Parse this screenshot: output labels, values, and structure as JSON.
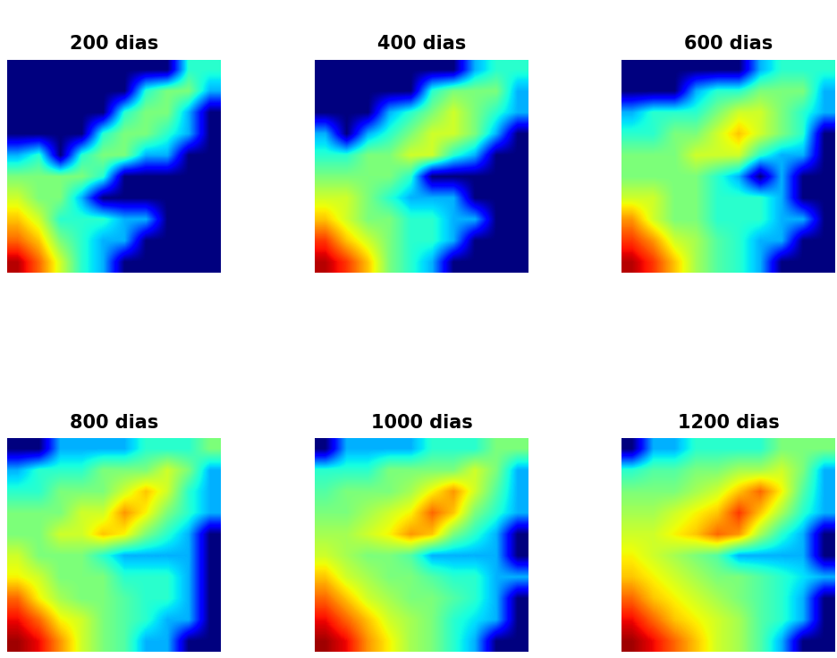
{
  "chart_data": [
    {
      "type": "heatmap",
      "title": "200 dias",
      "color": "jet",
      "color_range": [
        0,
        1
      ],
      "tick_labels": false,
      "cells": [
        [
          0,
          0,
          0,
          0,
          0,
          0,
          0,
          0,
          0.4,
          0.4
        ],
        [
          0,
          0,
          0,
          0,
          0,
          0,
          0.4,
          0.5,
          0.5,
          0.3
        ],
        [
          0,
          0,
          0,
          0,
          0,
          0.4,
          0.5,
          0.5,
          0.3,
          0
        ],
        [
          0,
          0,
          0,
          0,
          0.4,
          0.5,
          0.5,
          0.4,
          0.3,
          0
        ],
        [
          0.3,
          0.4,
          0,
          0.4,
          0.5,
          0.5,
          0.3,
          0.3,
          0,
          0
        ],
        [
          0.5,
          0.5,
          0.5,
          0.5,
          0.4,
          0,
          0,
          0,
          0,
          0
        ],
        [
          0.6,
          0.5,
          0.5,
          0.3,
          0,
          0,
          0,
          0,
          0,
          0
        ],
        [
          0.7,
          0.6,
          0.4,
          0.4,
          0.4,
          0.3,
          0.3,
          0,
          0,
          0
        ],
        [
          0.8,
          0.7,
          0.5,
          0.4,
          0.3,
          0.3,
          0,
          0,
          0,
          0
        ],
        [
          0.95,
          0.8,
          0.6,
          0.4,
          0.3,
          0,
          0,
          0,
          0,
          0
        ]
      ]
    },
    {
      "type": "heatmap",
      "title": "400 dias",
      "color": "jet",
      "color_range": [
        0,
        1
      ],
      "tick_labels": false,
      "cells": [
        [
          0,
          0,
          0,
          0,
          0,
          0,
          0,
          0.3,
          0.4,
          0.4
        ],
        [
          0,
          0,
          0,
          0,
          0,
          0.4,
          0.5,
          0.5,
          0.5,
          0.3
        ],
        [
          0,
          0,
          0,
          0.3,
          0.4,
          0.5,
          0.6,
          0.5,
          0.4,
          0.3
        ],
        [
          0.3,
          0,
          0.3,
          0.4,
          0.5,
          0.6,
          0.6,
          0.5,
          0.3,
          0
        ],
        [
          0.4,
          0.4,
          0.5,
          0.5,
          0.6,
          0.6,
          0.4,
          0.3,
          0,
          0
        ],
        [
          0.5,
          0.5,
          0.5,
          0.5,
          0.4,
          0,
          0,
          0,
          0,
          0
        ],
        [
          0.6,
          0.6,
          0.5,
          0.4,
          0.3,
          0.3,
          0.3,
          0,
          0,
          0
        ],
        [
          0.7,
          0.6,
          0.5,
          0.5,
          0.4,
          0.4,
          0.3,
          0.3,
          0,
          0
        ],
        [
          0.85,
          0.7,
          0.6,
          0.5,
          0.4,
          0.4,
          0.3,
          0,
          0,
          0
        ],
        [
          0.95,
          0.85,
          0.7,
          0.5,
          0.4,
          0.3,
          0,
          0,
          0,
          0
        ]
      ]
    },
    {
      "type": "heatmap",
      "title": "600 dias",
      "color": "jet",
      "color_range": [
        0,
        1
      ],
      "tick_labels": false,
      "cells": [
        [
          0,
          0,
          0,
          0,
          0,
          0,
          0.3,
          0.4,
          0.4,
          0.4
        ],
        [
          0,
          0,
          0,
          0.3,
          0.4,
          0.4,
          0.5,
          0.5,
          0.5,
          0.3
        ],
        [
          0.3,
          0.4,
          0.4,
          0.4,
          0.5,
          0.6,
          0.6,
          0.5,
          0.4,
          0.3
        ],
        [
          0.4,
          0.4,
          0.5,
          0.5,
          0.6,
          0.7,
          0.6,
          0.5,
          0.4,
          0
        ],
        [
          0.5,
          0.5,
          0.5,
          0.6,
          0.6,
          0.6,
          0.4,
          0.3,
          0.3,
          0
        ],
        [
          0.5,
          0.5,
          0.5,
          0.5,
          0.4,
          0.3,
          0,
          0.3,
          0,
          0
        ],
        [
          0.6,
          0.6,
          0.5,
          0.5,
          0.4,
          0.4,
          0.4,
          0.3,
          0,
          0
        ],
        [
          0.75,
          0.6,
          0.5,
          0.5,
          0.4,
          0.4,
          0.4,
          0.3,
          0.3,
          0
        ],
        [
          0.85,
          0.75,
          0.6,
          0.55,
          0.45,
          0.4,
          0.3,
          0.3,
          0,
          0
        ],
        [
          0.95,
          0.85,
          0.7,
          0.55,
          0.45,
          0.4,
          0.3,
          0,
          0,
          0
        ]
      ]
    },
    {
      "type": "heatmap",
      "title": "800 dias",
      "color": "jet",
      "color_range": [
        0,
        1
      ],
      "tick_labels": false,
      "cells": [
        [
          0,
          0,
          0.3,
          0.3,
          0.3,
          0.3,
          0.4,
          0.4,
          0.4,
          0.5
        ],
        [
          0.3,
          0.4,
          0.4,
          0.4,
          0.5,
          0.5,
          0.5,
          0.6,
          0.5,
          0.3
        ],
        [
          0.4,
          0.4,
          0.5,
          0.5,
          0.5,
          0.6,
          0.7,
          0.6,
          0.4,
          0.3
        ],
        [
          0.5,
          0.5,
          0.5,
          0.6,
          0.6,
          0.75,
          0.65,
          0.5,
          0.4,
          0.3
        ],
        [
          0.5,
          0.5,
          0.6,
          0.6,
          0.7,
          0.65,
          0.5,
          0.4,
          0.3,
          0
        ],
        [
          0.6,
          0.5,
          0.5,
          0.5,
          0.4,
          0.3,
          0.3,
          0.3,
          0.3,
          0
        ],
        [
          0.65,
          0.6,
          0.5,
          0.5,
          0.5,
          0.4,
          0.4,
          0.4,
          0.3,
          0
        ],
        [
          0.8,
          0.65,
          0.55,
          0.5,
          0.5,
          0.45,
          0.4,
          0.4,
          0.3,
          0
        ],
        [
          0.9,
          0.8,
          0.65,
          0.6,
          0.5,
          0.45,
          0.4,
          0.3,
          0.3,
          0
        ],
        [
          0.97,
          0.9,
          0.75,
          0.6,
          0.5,
          0.45,
          0.3,
          0.3,
          0,
          0
        ]
      ]
    },
    {
      "type": "heatmap",
      "title": "1000 dias",
      "color": "jet",
      "color_range": [
        0,
        1
      ],
      "tick_labels": false,
      "cells": [
        [
          0,
          0.3,
          0.3,
          0.3,
          0.3,
          0.4,
          0.4,
          0.4,
          0.5,
          0.5
        ],
        [
          0.4,
          0.4,
          0.4,
          0.5,
          0.5,
          0.5,
          0.5,
          0.6,
          0.5,
          0.3
        ],
        [
          0.45,
          0.5,
          0.5,
          0.5,
          0.55,
          0.65,
          0.75,
          0.6,
          0.45,
          0.3
        ],
        [
          0.5,
          0.5,
          0.55,
          0.6,
          0.65,
          0.8,
          0.7,
          0.5,
          0.4,
          0.3
        ],
        [
          0.55,
          0.55,
          0.6,
          0.65,
          0.75,
          0.7,
          0.5,
          0.4,
          0.3,
          0
        ],
        [
          0.6,
          0.55,
          0.5,
          0.5,
          0.45,
          0.3,
          0.3,
          0.3,
          0.3,
          0
        ],
        [
          0.7,
          0.6,
          0.55,
          0.5,
          0.5,
          0.45,
          0.4,
          0.4,
          0.3,
          0.3
        ],
        [
          0.8,
          0.7,
          0.6,
          0.55,
          0.5,
          0.5,
          0.45,
          0.4,
          0.3,
          0
        ],
        [
          0.9,
          0.8,
          0.7,
          0.6,
          0.55,
          0.5,
          0.4,
          0.35,
          0.3,
          0
        ],
        [
          0.97,
          0.9,
          0.75,
          0.65,
          0.55,
          0.5,
          0.4,
          0.3,
          0,
          0
        ]
      ]
    },
    {
      "type": "heatmap",
      "title": "1200 dias",
      "color": "jet",
      "color_range": [
        0,
        1
      ],
      "tick_labels": false,
      "cells": [
        [
          0,
          0.3,
          0.3,
          0.4,
          0.4,
          0.4,
          0.4,
          0.5,
          0.5,
          0.5
        ],
        [
          0.4,
          0.45,
          0.45,
          0.5,
          0.5,
          0.55,
          0.55,
          0.6,
          0.5,
          0.3
        ],
        [
          0.5,
          0.5,
          0.5,
          0.55,
          0.6,
          0.7,
          0.8,
          0.65,
          0.45,
          0.3
        ],
        [
          0.55,
          0.55,
          0.6,
          0.65,
          0.7,
          0.85,
          0.7,
          0.55,
          0.4,
          0.3
        ],
        [
          0.6,
          0.6,
          0.65,
          0.7,
          0.8,
          0.75,
          0.55,
          0.4,
          0.3,
          0
        ],
        [
          0.65,
          0.6,
          0.55,
          0.5,
          0.45,
          0.3,
          0.3,
          0.3,
          0.3,
          0
        ],
        [
          0.7,
          0.65,
          0.6,
          0.55,
          0.5,
          0.5,
          0.45,
          0.4,
          0.35,
          0.3
        ],
        [
          0.8,
          0.7,
          0.65,
          0.6,
          0.55,
          0.5,
          0.45,
          0.4,
          0.3,
          0
        ],
        [
          0.9,
          0.8,
          0.7,
          0.65,
          0.6,
          0.55,
          0.45,
          0.4,
          0.3,
          0
        ],
        [
          0.97,
          0.9,
          0.8,
          0.7,
          0.6,
          0.55,
          0.45,
          0.3,
          0,
          0
        ]
      ]
    }
  ]
}
